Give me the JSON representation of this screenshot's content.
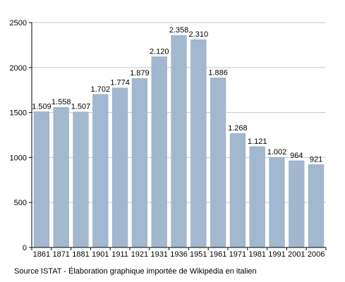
{
  "chart_data": {
    "type": "bar",
    "categories": [
      "1861",
      "1871",
      "1881",
      "1901",
      "1911",
      "1921",
      "1931",
      "1936",
      "1951",
      "1961",
      "1971",
      "1981",
      "1991",
      "2001",
      "2006"
    ],
    "values": [
      1509,
      1558,
      1507,
      1702,
      1774,
      1879,
      2120,
      2358,
      2310,
      1886,
      1268,
      1121,
      1002,
      964,
      921
    ],
    "value_labels": [
      "1.509",
      "1.558",
      "1.507",
      "1.702",
      "1.774",
      "1.879",
      "2.120",
      "2.358",
      "2.310",
      "1.886",
      "1.268",
      "1.121",
      "1.002",
      "964",
      "921"
    ],
    "ylim": [
      0,
      2500
    ],
    "yticks": [
      0,
      500,
      1000,
      1500,
      2000,
      2500
    ],
    "grid": true,
    "legend": "none",
    "bar_color": "#a2b8d0",
    "bar_edge_color": "#8fa6bf",
    "grid_color": "#c8c8c8",
    "axis_color": "#000000"
  },
  "source_note": "Source ISTAT - Élaboration graphique importée de Wikipédia en italien"
}
